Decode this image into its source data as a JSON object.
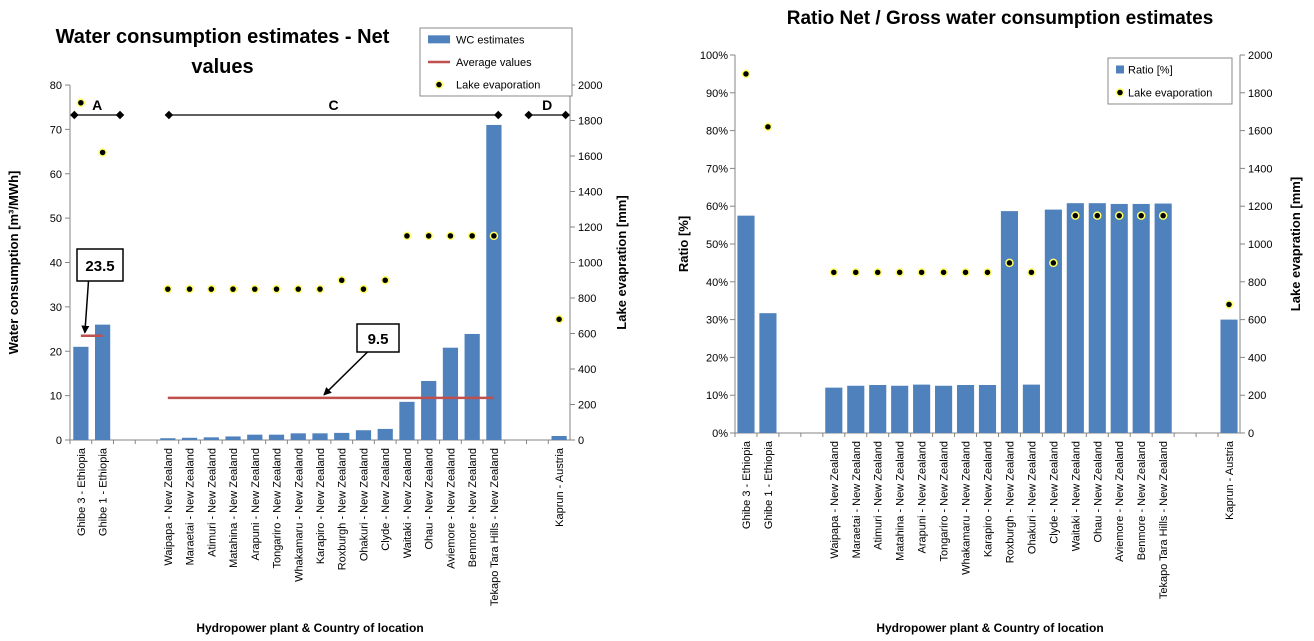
{
  "chart_data": [
    {
      "type": "bar",
      "title": "Water consumption estimates - Net values",
      "categories": [
        "Ghibe 3 - Ethiopia",
        "Ghibe 1 - Ethiopia",
        null,
        null,
        "Waipapa - New Zealand",
        "Maraetai - New Zealand",
        "Atimuri - New Zealand",
        "Matahina - New Zealand",
        "Arapuni - New Zealand",
        "Tongariro - New Zealand",
        "Whakamaru - New Zealand",
        "Karapiro - New Zealand",
        "Roxburgh - New Zealand",
        "Ohakuri - New Zealand",
        "Clyde - New Zealand",
        "Waitaki - New Zealand",
        "Ohau - New Zealand",
        "Aviemore - New Zealand",
        "Benmore - New Zealand",
        "Tekapo Tara Hills - New Zealand",
        null,
        null,
        "Kaprun - Austria"
      ],
      "series": [
        {
          "name": "WC estimates",
          "type": "bar",
          "color": "#4f81bd",
          "values": [
            21,
            26,
            null,
            null,
            0.4,
            0.5,
            0.6,
            0.8,
            1.2,
            1.2,
            1.5,
            1.5,
            1.6,
            2.2,
            2.5,
            8.6,
            13.3,
            20.8,
            23.9,
            71,
            null,
            null,
            0.9
          ]
        },
        {
          "name": "Average values",
          "type": "line",
          "color": "#c0504d",
          "values": [
            23.5,
            23.5,
            null,
            null,
            9.5,
            9.5,
            9.5,
            9.5,
            9.5,
            9.5,
            9.5,
            9.5,
            9.5,
            9.5,
            9.5,
            9.5,
            9.5,
            9.5,
            9.5,
            9.5,
            null,
            null,
            null
          ]
        },
        {
          "name": "Lake evaporation",
          "type": "scatter",
          "axis": "y2",
          "color": "#000000",
          "edge_color": "#ffff66",
          "values": [
            1900,
            1620,
            null,
            null,
            850,
            850,
            850,
            850,
            850,
            850,
            850,
            850,
            900,
            850,
            900,
            1150,
            1150,
            1150,
            1150,
            1150,
            null,
            null,
            680
          ]
        }
      ],
      "ylim": [
        0,
        80
      ],
      "yticks": [
        0,
        10,
        20,
        30,
        40,
        50,
        60,
        70,
        80
      ],
      "y2lim": [
        0,
        2000
      ],
      "y2ticks": [
        0,
        200,
        400,
        600,
        800,
        1000,
        1200,
        1400,
        1600,
        1800,
        2000
      ],
      "ylabel": "Water consumption  [m³/MWh]",
      "y2label": "Lake evapration [mm]",
      "xlabel": "Hydropower plant & Country of location",
      "groups": [
        "A",
        "C",
        "D"
      ],
      "group_color": "#00b050",
      "annotations": [
        23.5,
        9.5
      ],
      "legend": "upper right",
      "grid": false
    },
    {
      "type": "bar",
      "title": "Ratio Net / Gross water consumption estimates",
      "categories": [
        "Ghibe 3 - Ethiopia",
        "Ghibe 1 - Ethiopia",
        null,
        null,
        "Waipapa - New Zealand",
        "Maraetai - New Zealand",
        "Atimuri - New Zealand",
        "Matahina - New Zealand",
        "Arapuni - New Zealand",
        "Tongariro - New Zealand",
        "Whakamaru - New Zealand",
        "Karapiro - New Zealand",
        "Roxburgh - New Zealand",
        "Ohakuri - New Zealand",
        "Clyde - New Zealand",
        "Waitaki - New Zealand",
        "Ohau - New Zealand",
        "Aviemore - New Zealand",
        "Benmore - New Zealand",
        "Tekapo Tara Hills - New Zealand",
        null,
        null,
        "Kaprun - Austria"
      ],
      "series": [
        {
          "name": "Ratio [%]",
          "type": "bar",
          "color": "#4f81bd",
          "values": [
            57.5,
            31.7,
            null,
            null,
            12,
            12.5,
            12.7,
            12.5,
            12.8,
            12.5,
            12.7,
            12.7,
            58.7,
            12.8,
            59.1,
            60.8,
            60.8,
            60.6,
            60.6,
            60.7,
            null,
            null,
            30
          ]
        },
        {
          "name": "Lake evaporation",
          "type": "scatter",
          "axis": "y2",
          "color": "#000000",
          "edge_color": "#ffff66",
          "values": [
            1900,
            1620,
            null,
            null,
            850,
            850,
            850,
            850,
            850,
            850,
            850,
            850,
            900,
            850,
            900,
            1150,
            1150,
            1150,
            1150,
            1150,
            null,
            null,
            680
          ]
        }
      ],
      "ylim": [
        0,
        100
      ],
      "yticks": [
        {
          "value": 0,
          "label": "0%"
        },
        {
          "value": 10,
          "label": "10%"
        },
        {
          "value": 20,
          "label": "20%"
        },
        {
          "value": 30,
          "label": "30%"
        },
        {
          "value": 40,
          "label": "40%"
        },
        {
          "value": 50,
          "label": "50%"
        },
        {
          "value": 60,
          "label": "60%"
        },
        {
          "value": 70,
          "label": "70%"
        },
        {
          "value": 80,
          "label": "80%"
        },
        {
          "value": 90,
          "label": "90%"
        },
        {
          "value": 100,
          "label": "100%"
        }
      ],
      "y2lim": [
        0,
        2000
      ],
      "y2ticks": [
        0,
        200,
        400,
        600,
        800,
        1000,
        1200,
        1400,
        1600,
        1800,
        2000
      ],
      "ylabel": "Ratio [%]",
      "y2label": "Lake evapration [mm]",
      "xlabel": "Hydropower plant & Country of location",
      "legend": "upper right",
      "grid": false
    }
  ]
}
